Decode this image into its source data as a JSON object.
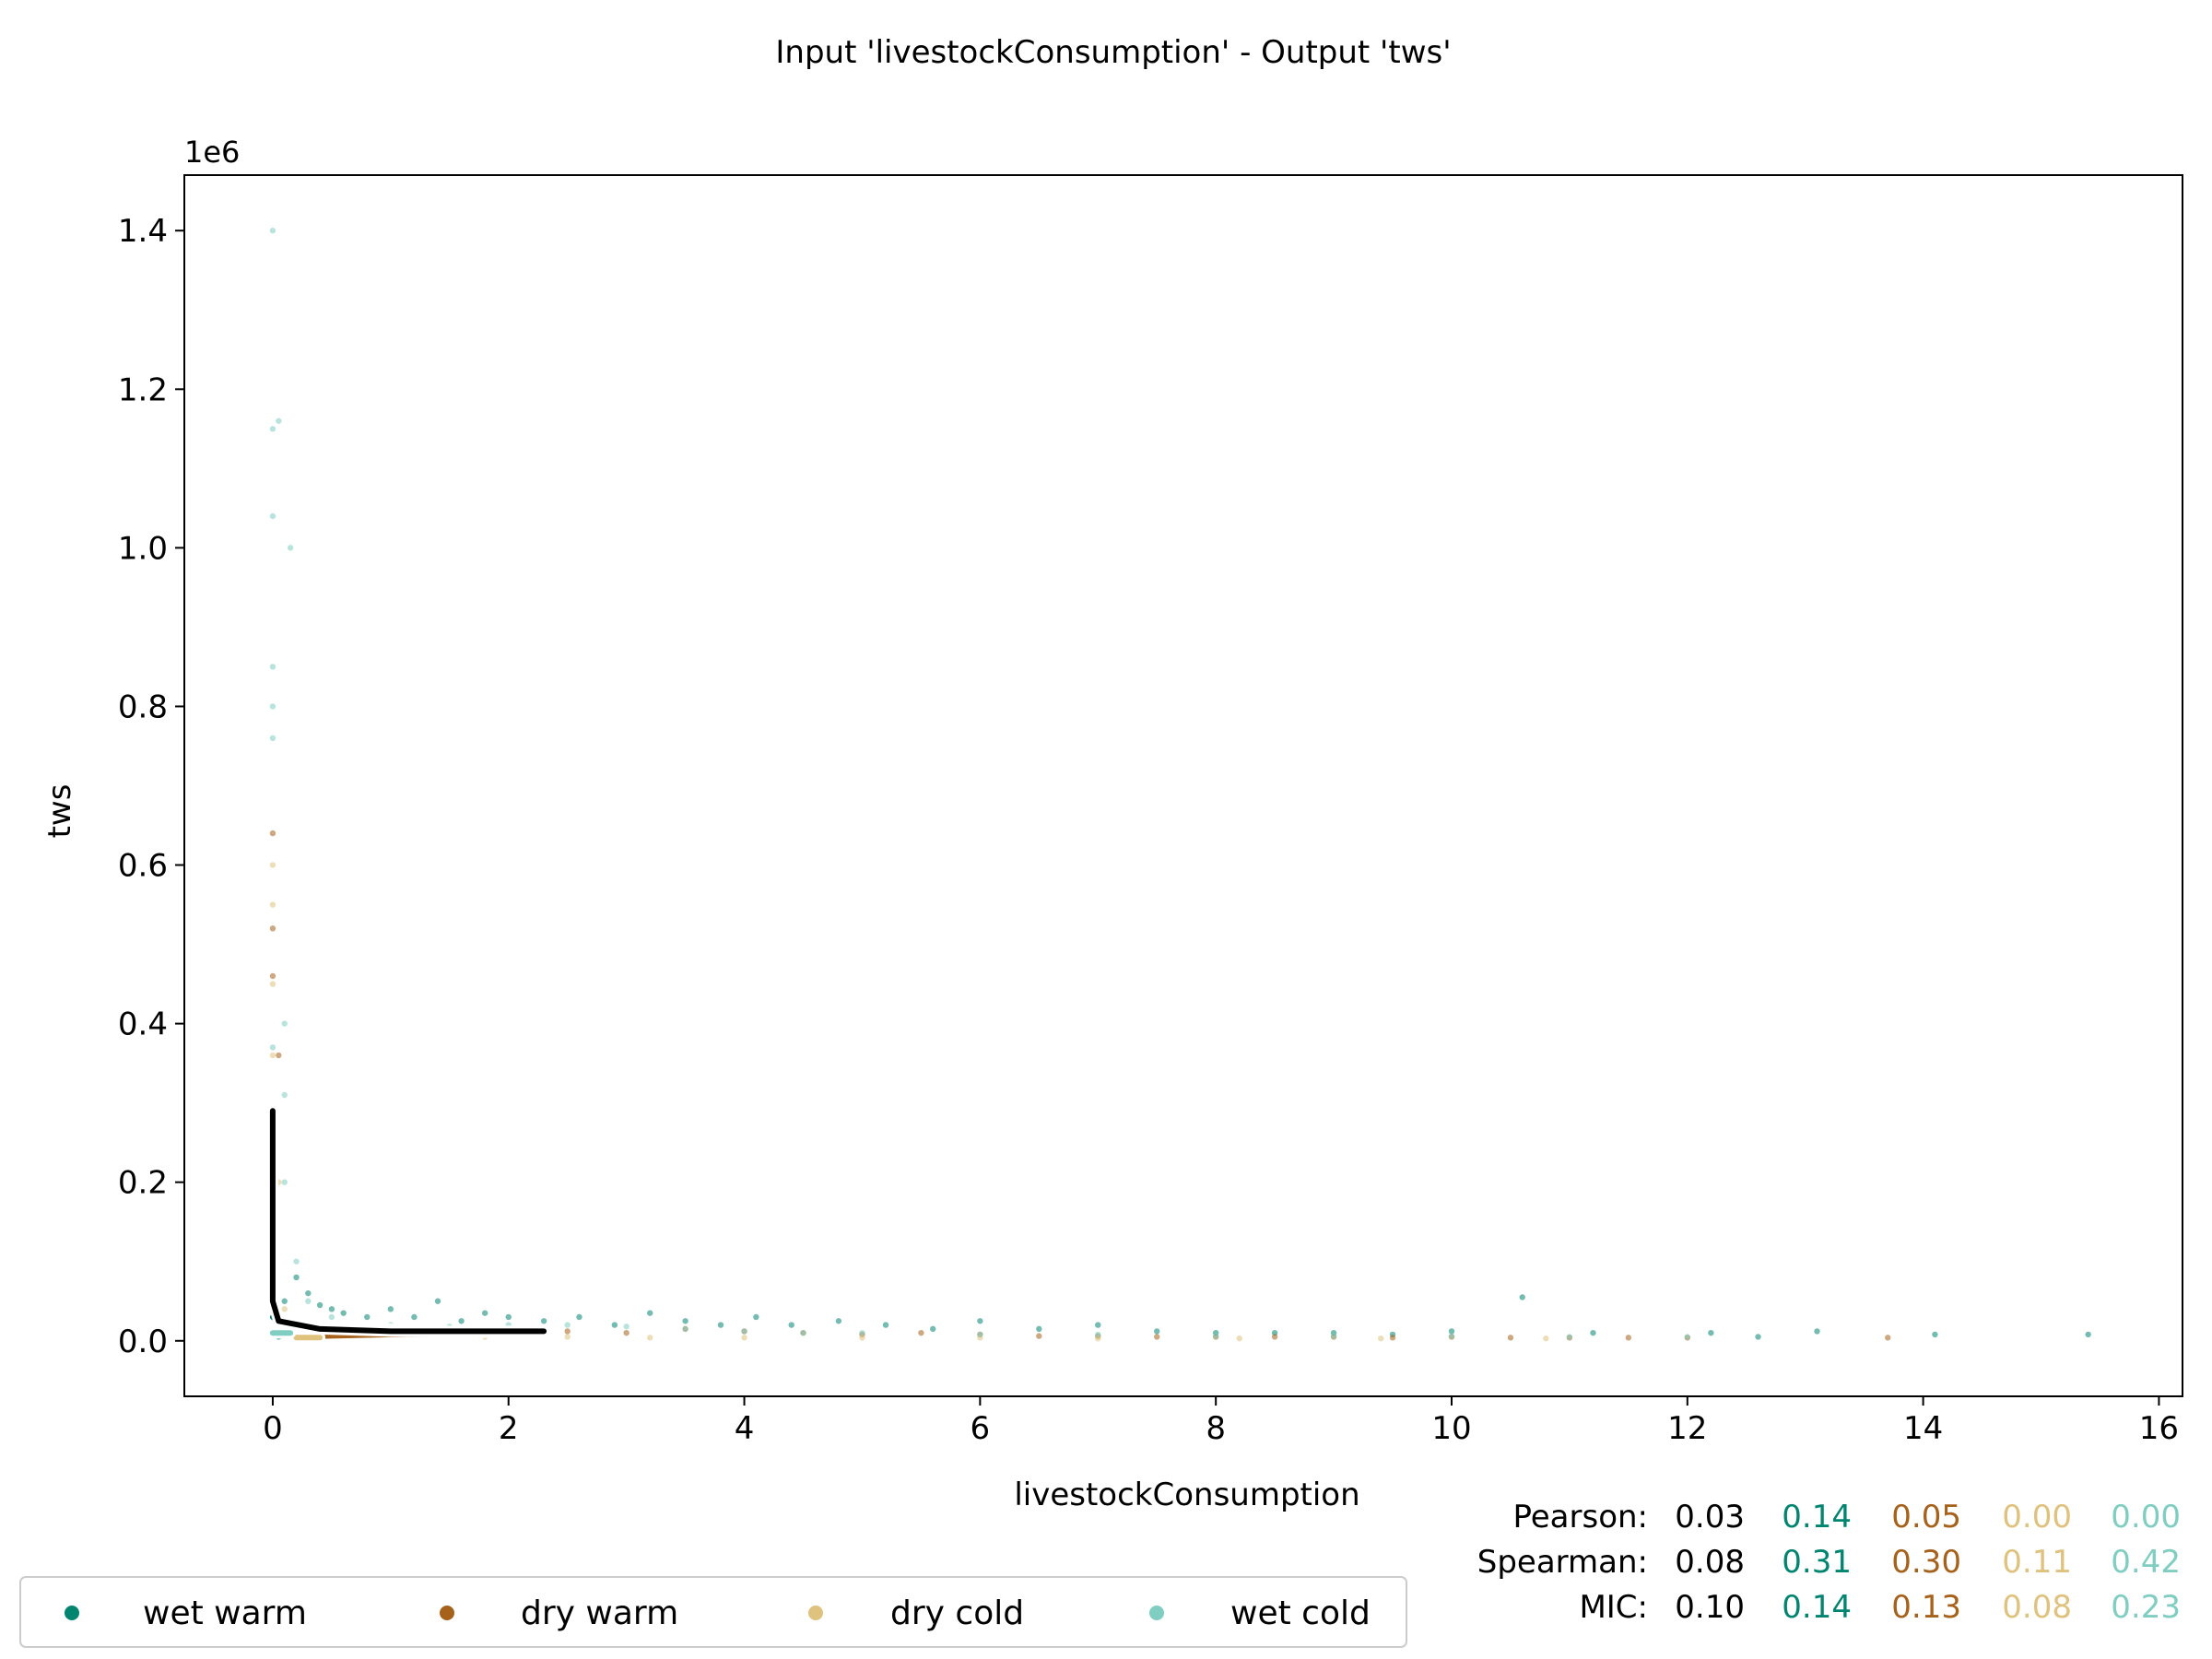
{
  "chart_data": {
    "type": "scatter",
    "title": "Input 'livestockConsumption' - Output 'tws'",
    "xlabel": "livestockConsumption",
    "ylabel": "tws",
    "y_offset_label": "1e6",
    "xlim": [
      -0.75,
      16.2
    ],
    "ylim": [
      -0.07,
      1.47
    ],
    "xticks": [
      0,
      2,
      4,
      6,
      8,
      10,
      12,
      14,
      16
    ],
    "xtick_labels": [
      "0",
      "2",
      "4",
      "6",
      "8",
      "10",
      "12",
      "14",
      "16"
    ],
    "yticks": [
      0.0,
      0.2,
      0.4,
      0.6,
      0.8,
      1.0,
      1.2,
      1.4
    ],
    "ytick_labels": [
      "0.0",
      "0.2",
      "0.4",
      "0.6",
      "0.8",
      "1.0",
      "1.2",
      "1.4"
    ],
    "grid": false,
    "legend_position": "bottom-left",
    "series": [
      {
        "name": "wet warm",
        "color": "#018571",
        "points": [
          [
            0.05,
            0.005
          ],
          [
            0.1,
            0.05
          ],
          [
            0.2,
            0.08
          ],
          [
            0.3,
            0.06
          ],
          [
            0.4,
            0.045
          ],
          [
            0.5,
            0.04
          ],
          [
            0.6,
            0.035
          ],
          [
            0.8,
            0.03
          ],
          [
            1.0,
            0.04
          ],
          [
            1.2,
            0.03
          ],
          [
            1.4,
            0.05
          ],
          [
            1.6,
            0.025
          ],
          [
            1.8,
            0.035
          ],
          [
            2.0,
            0.03
          ],
          [
            2.3,
            0.025
          ],
          [
            2.6,
            0.03
          ],
          [
            2.9,
            0.02
          ],
          [
            3.2,
            0.035
          ],
          [
            3.5,
            0.025
          ],
          [
            3.8,
            0.02
          ],
          [
            4.1,
            0.03
          ],
          [
            4.4,
            0.02
          ],
          [
            4.8,
            0.025
          ],
          [
            5.2,
            0.02
          ],
          [
            5.6,
            0.015
          ],
          [
            6.0,
            0.025
          ],
          [
            6.5,
            0.015
          ],
          [
            7.0,
            0.02
          ],
          [
            7.5,
            0.012
          ],
          [
            8.0,
            0.01
          ],
          [
            8.5,
            0.01
          ],
          [
            9.0,
            0.01
          ],
          [
            9.5,
            0.008
          ],
          [
            10.0,
            0.012
          ],
          [
            10.6,
            0.055
          ],
          [
            11.2,
            0.01
          ],
          [
            12.2,
            0.01
          ],
          [
            12.6,
            0.005
          ],
          [
            13.1,
            0.012
          ],
          [
            14.1,
            0.008
          ],
          [
            15.4,
            0.008
          ]
        ],
        "regression_line": [
          [
            0.0,
            0.03
          ],
          [
            0.1,
            0.02
          ],
          [
            0.3,
            0.015
          ],
          [
            0.6,
            0.015
          ],
          [
            1.0,
            0.015
          ]
        ]
      },
      {
        "name": "dry warm",
        "color": "#a6611a",
        "points": [
          [
            0.0,
            0.64
          ],
          [
            0.0,
            0.52
          ],
          [
            0.0,
            0.46
          ],
          [
            0.05,
            0.36
          ],
          [
            0.1,
            0.02
          ],
          [
            0.3,
            0.01
          ],
          [
            0.6,
            0.008
          ],
          [
            1.0,
            0.01
          ],
          [
            1.5,
            0.012
          ],
          [
            2.0,
            0.01
          ],
          [
            2.5,
            0.012
          ],
          [
            3.0,
            0.01
          ],
          [
            3.5,
            0.015
          ],
          [
            4.0,
            0.012
          ],
          [
            4.5,
            0.01
          ],
          [
            5.0,
            0.008
          ],
          [
            5.5,
            0.01
          ],
          [
            6.0,
            0.008
          ],
          [
            6.5,
            0.006
          ],
          [
            7.0,
            0.006
          ],
          [
            7.5,
            0.005
          ],
          [
            8.0,
            0.005
          ],
          [
            8.5,
            0.005
          ],
          [
            9.0,
            0.005
          ],
          [
            9.5,
            0.004
          ],
          [
            10.0,
            0.005
          ],
          [
            10.5,
            0.004
          ],
          [
            11.0,
            0.004
          ],
          [
            11.5,
            0.004
          ],
          [
            12.0,
            0.004
          ],
          [
            13.7,
            0.004
          ]
        ],
        "regression_line": [
          [
            0.4,
            0.006
          ],
          [
            1.0,
            0.008
          ],
          [
            2.3,
            0.012
          ]
        ]
      },
      {
        "name": "dry cold",
        "color": "#dfc27d",
        "points": [
          [
            0.0,
            0.6
          ],
          [
            0.0,
            0.55
          ],
          [
            0.0,
            0.45
          ],
          [
            0.0,
            0.36
          ],
          [
            0.05,
            0.2
          ],
          [
            0.1,
            0.04
          ],
          [
            0.2,
            0.02
          ],
          [
            0.4,
            0.01
          ],
          [
            0.8,
            0.008
          ],
          [
            1.2,
            0.006
          ],
          [
            1.8,
            0.005
          ],
          [
            2.5,
            0.005
          ],
          [
            3.2,
            0.004
          ],
          [
            4.0,
            0.004
          ],
          [
            5.0,
            0.004
          ],
          [
            6.0,
            0.004
          ],
          [
            7.0,
            0.003
          ],
          [
            8.2,
            0.003
          ],
          [
            9.4,
            0.003
          ],
          [
            10.8,
            0.003
          ]
        ],
        "regression_line": [
          [
            0.2,
            0.004
          ],
          [
            0.4,
            0.004
          ]
        ]
      },
      {
        "name": "wet cold",
        "color": "#80cdc1",
        "points": [
          [
            0.0,
            1.4
          ],
          [
            0.05,
            1.16
          ],
          [
            0.0,
            1.15
          ],
          [
            0.0,
            1.04
          ],
          [
            0.15,
            1.0
          ],
          [
            0.0,
            0.85
          ],
          [
            0.0,
            0.8
          ],
          [
            0.0,
            0.76
          ],
          [
            0.1,
            0.4
          ],
          [
            0.0,
            0.37
          ],
          [
            0.1,
            0.31
          ],
          [
            0.1,
            0.2
          ],
          [
            0.2,
            0.1
          ],
          [
            0.3,
            0.05
          ],
          [
            0.5,
            0.03
          ],
          [
            1.0,
            0.02
          ],
          [
            1.5,
            0.018
          ],
          [
            2.0,
            0.02
          ],
          [
            2.5,
            0.02
          ],
          [
            3.0,
            0.018
          ],
          [
            3.5,
            0.015
          ],
          [
            4.0,
            0.012
          ],
          [
            4.5,
            0.01
          ],
          [
            5.0,
            0.01
          ],
          [
            6.0,
            0.008
          ],
          [
            7.0,
            0.008
          ],
          [
            8.0,
            0.006
          ],
          [
            9.0,
            0.006
          ],
          [
            10.0,
            0.006
          ],
          [
            11.0,
            0.005
          ],
          [
            12.0,
            0.005
          ]
        ],
        "regression_line": [
          [
            0.0,
            0.01
          ],
          [
            0.15,
            0.01
          ]
        ]
      }
    ],
    "overall_regression_line": [
      [
        0.0,
        0.29
      ],
      [
        0.0,
        0.05
      ],
      [
        0.05,
        0.025
      ],
      [
        0.4,
        0.015
      ],
      [
        1.0,
        0.012
      ],
      [
        2.3,
        0.012
      ]
    ],
    "stats": {
      "column_colors": [
        "#000000",
        "#018571",
        "#a6611a",
        "#dfc27d",
        "#80cdc1"
      ],
      "rows": [
        {
          "label": "Pearson:",
          "values": [
            "0.03",
            "0.14",
            "0.05",
            "0.00",
            "0.00"
          ]
        },
        {
          "label": "Spearman:",
          "values": [
            "0.08",
            "0.31",
            "0.30",
            "0.11",
            "0.42"
          ]
        },
        {
          "label": "MIC:",
          "values": [
            "0.10",
            "0.14",
            "0.13",
            "0.08",
            "0.23"
          ]
        }
      ]
    }
  }
}
